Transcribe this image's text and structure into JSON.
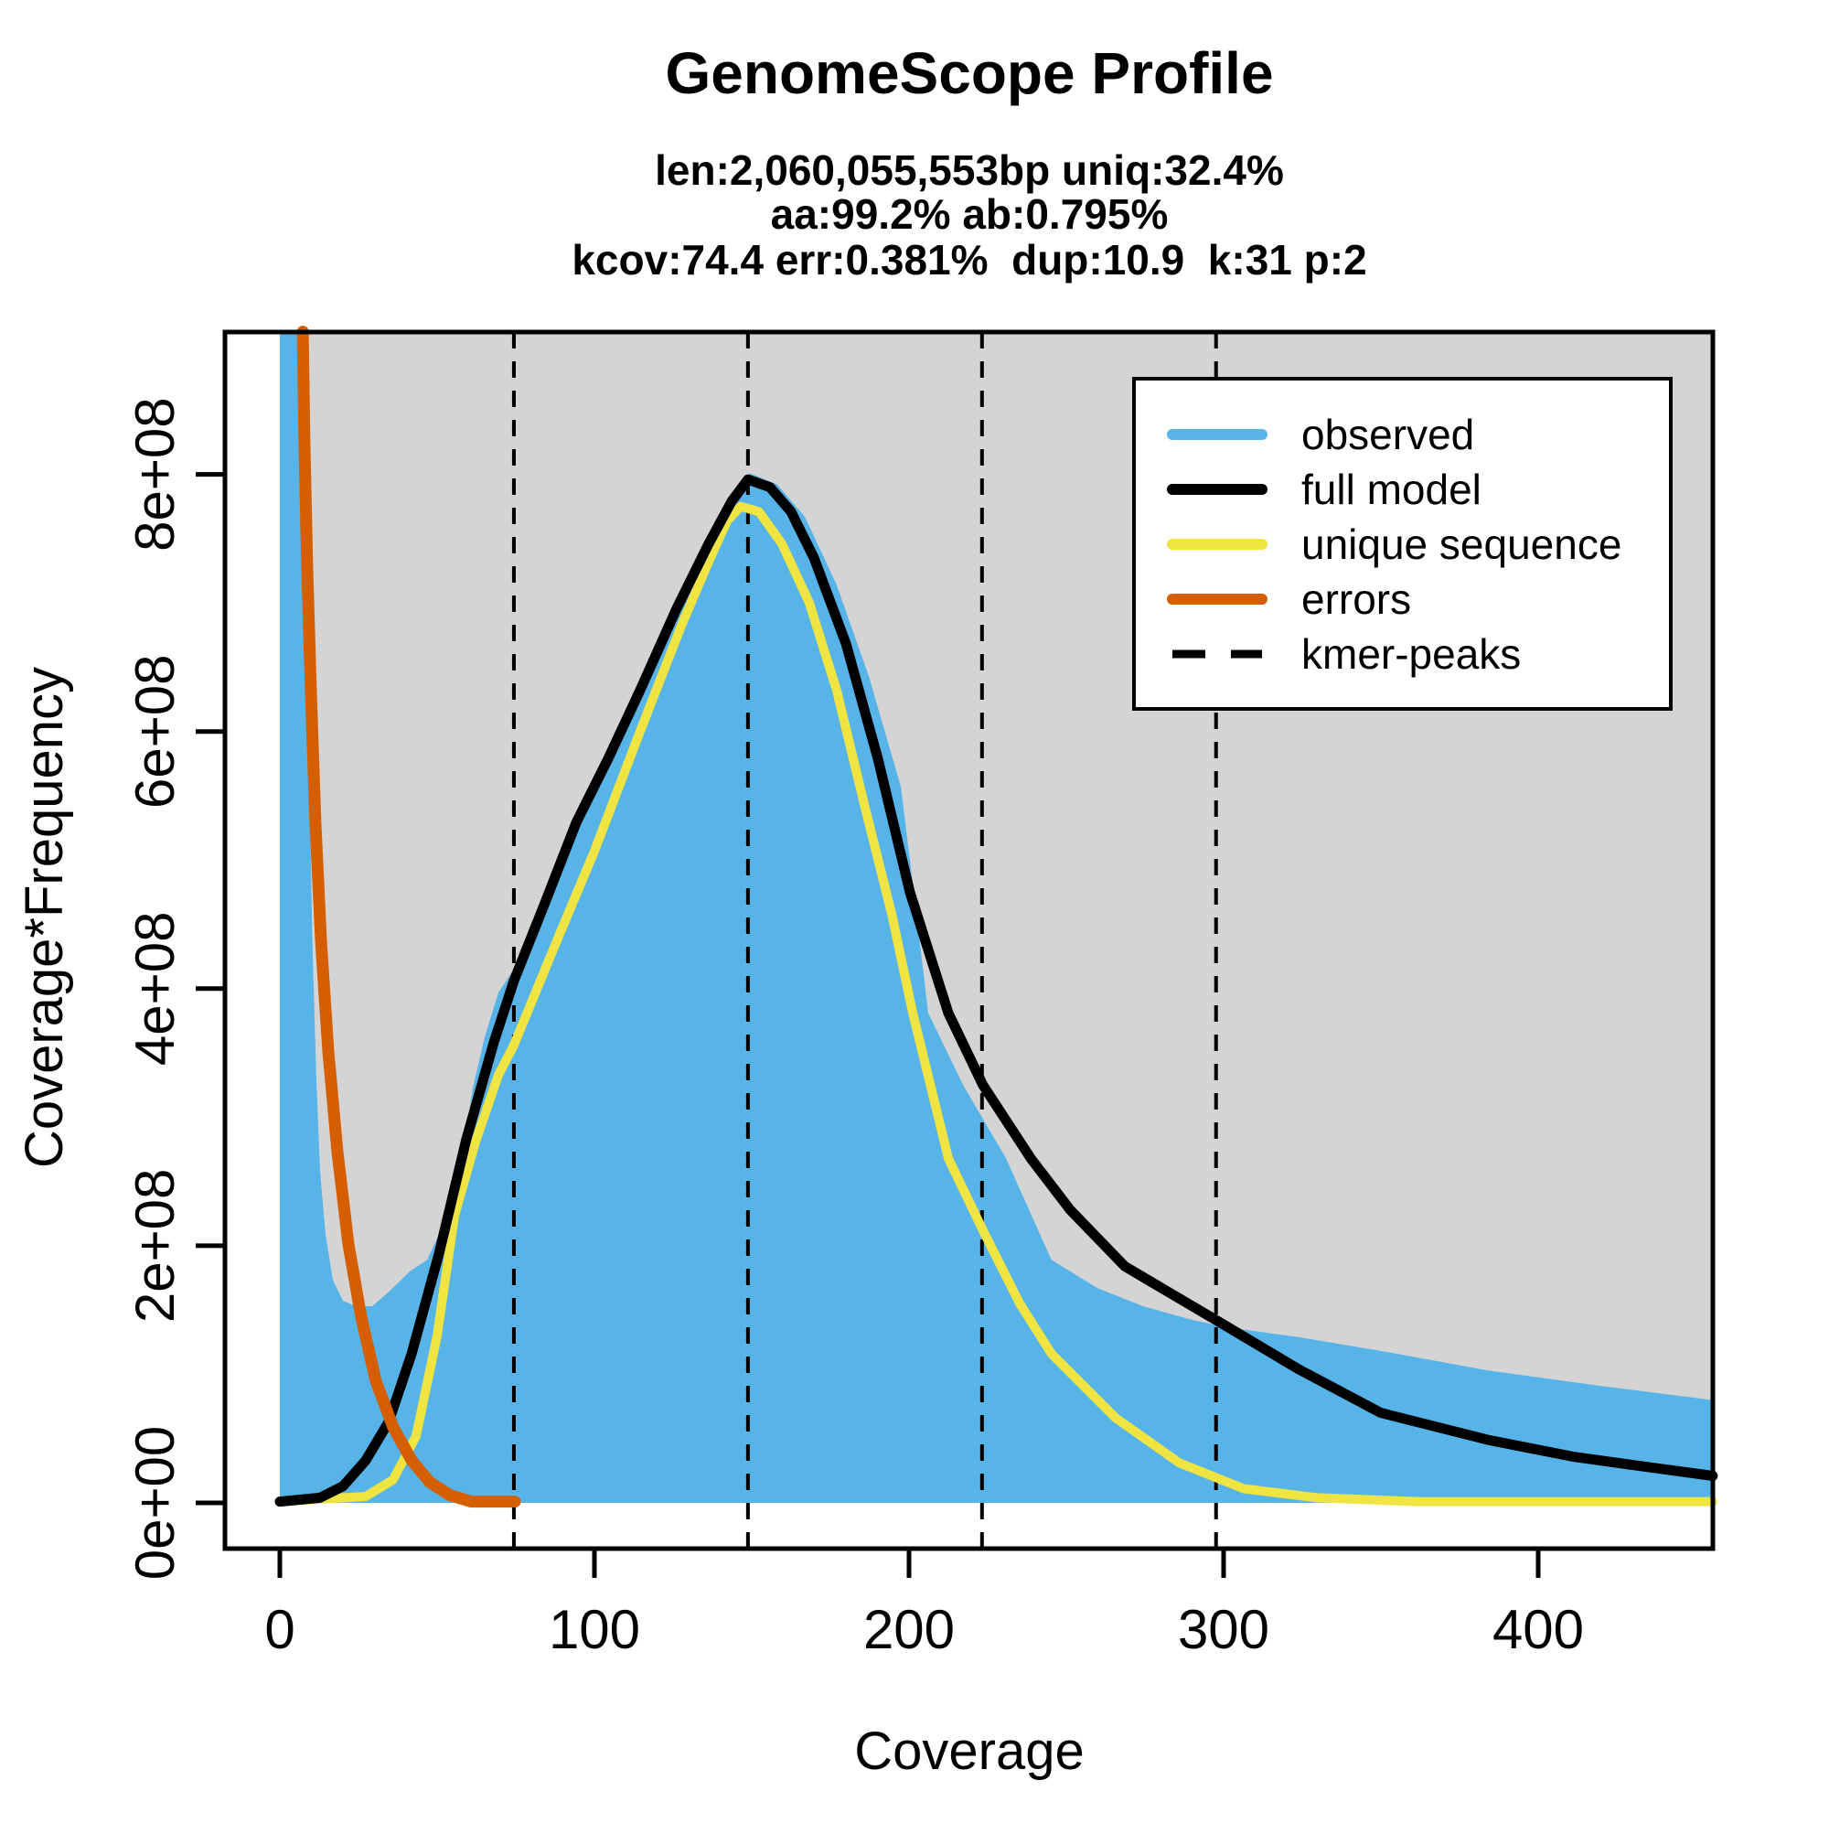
{
  "title": "GenomeScope Profile",
  "subtitle_lines": [
    "len:2,060,055,553bp uniq:32.4%",
    "aa:99.2% ab:0.795%",
    "kcov:74.4 err:0.381%  dup:10.9  k:31 p:2"
  ],
  "axes": {
    "x": {
      "label": "Coverage",
      "tick_values": [
        0,
        100,
        200,
        300,
        400
      ],
      "tick_labels": [
        "0",
        "100",
        "200",
        "300",
        "400"
      ],
      "range": [
        0,
        455.5
      ]
    },
    "y": {
      "label": "Coverage*Frequency",
      "tick_values": [
        0,
        2,
        4,
        6,
        8
      ],
      "tick_labels": [
        "0e+00",
        "2e+08",
        "4e+08",
        "6e+08",
        "8e+08"
      ],
      "range": [
        0,
        9.11
      ],
      "unit_multiplier": "1e+08"
    }
  },
  "legend": {
    "items": [
      {
        "label": "observed",
        "color": "#56B4E9",
        "style": "solid"
      },
      {
        "label": "full model",
        "color": "#000000",
        "style": "solid"
      },
      {
        "label": "unique sequence",
        "color": "#F0E442",
        "style": "solid"
      },
      {
        "label": "errors",
        "color": "#D55E00",
        "style": "solid"
      },
      {
        "label": "kmer-peaks",
        "color": "#000000",
        "style": "dashed"
      }
    ]
  },
  "colors": {
    "observed_fill": "#56B4E9",
    "full_model": "#000000",
    "unique_sequence": "#F0E442",
    "errors": "#D55E00",
    "clipped_region_gray": "#D4D4D4",
    "box_border": "#000000"
  },
  "chart_data": {
    "type": "area",
    "title": "GenomeScope Profile",
    "xlabel": "Coverage",
    "ylabel": "Coverage*Frequency",
    "xlim": [
      0,
      455.5
    ],
    "ylim_e8": [
      0,
      9.11
    ],
    "grid": false,
    "legend_position": "top-right",
    "kmer_peaks": [
      74.4,
      148.8,
      223.2,
      297.6
    ],
    "model_stats": {
      "len_bp": 2060055553,
      "uniq_pct": 32.4,
      "aa_pct": 99.2,
      "ab_pct": 0.795,
      "kcov": 74.4,
      "err_pct": 0.381,
      "dup": 10.9,
      "k": 31,
      "p": 2
    },
    "series": [
      {
        "name": "observed",
        "kind": "filled-area",
        "color": "#56B4E9",
        "points_x_y_e8": [
          [
            0,
            0
          ],
          [
            0,
            9.11
          ],
          [
            7.3,
            9.11
          ],
          [
            7.8,
            8.13
          ],
          [
            8.7,
            6.71
          ],
          [
            9.6,
            5.29
          ],
          [
            10.5,
            4.22
          ],
          [
            11.6,
            3.3
          ],
          [
            12.8,
            2.58
          ],
          [
            14.5,
            2.09
          ],
          [
            16.9,
            1.73
          ],
          [
            20.1,
            1.57
          ],
          [
            24.4,
            1.53
          ],
          [
            29.4,
            1.53
          ],
          [
            34.6,
            1.64
          ],
          [
            41.3,
            1.8
          ],
          [
            46.8,
            1.89
          ],
          [
            51.2,
            2.12
          ],
          [
            54.9,
            2.44
          ],
          [
            58.7,
            2.8
          ],
          [
            61.3,
            3.22
          ],
          [
            65.1,
            3.62
          ],
          [
            69.5,
            3.97
          ],
          [
            74.4,
            4.15
          ],
          [
            85.5,
            4.75
          ],
          [
            95.6,
            5.36
          ],
          [
            104.4,
            5.82
          ],
          [
            114.5,
            6.37
          ],
          [
            126.2,
            7.01
          ],
          [
            136.3,
            7.49
          ],
          [
            143.6,
            7.81
          ],
          [
            149.4,
            8.01
          ],
          [
            158.1,
            7.92
          ],
          [
            166.9,
            7.67
          ],
          [
            177.0,
            7.14
          ],
          [
            187.2,
            6.43
          ],
          [
            197.4,
            5.57
          ],
          [
            201.7,
            4.72
          ],
          [
            206.1,
            3.81
          ],
          [
            217.2,
            3.25
          ],
          [
            230.8,
            2.68
          ],
          [
            245.3,
            1.89
          ],
          [
            259.9,
            1.67
          ],
          [
            274.4,
            1.53
          ],
          [
            288.9,
            1.43
          ],
          [
            299.7,
            1.37
          ],
          [
            323.8,
            1.29
          ],
          [
            352.9,
            1.17
          ],
          [
            384.0,
            1.03
          ],
          [
            419.8,
            0.91
          ],
          [
            455.5,
            0.8
          ],
          [
            455.5,
            0
          ]
        ]
      },
      {
        "name": "full model",
        "kind": "line",
        "color": "#000000",
        "width": 11,
        "points_x_y_e8": [
          [
            0,
            0.01
          ],
          [
            12.8,
            0.04
          ],
          [
            20.1,
            0.13
          ],
          [
            27.3,
            0.33
          ],
          [
            34.6,
            0.63
          ],
          [
            41.9,
            1.16
          ],
          [
            50.6,
            1.94
          ],
          [
            59.3,
            2.83
          ],
          [
            68.0,
            3.58
          ],
          [
            74.4,
            4.06
          ],
          [
            84.0,
            4.65
          ],
          [
            94.2,
            5.29
          ],
          [
            104.4,
            5.79
          ],
          [
            114.5,
            6.32
          ],
          [
            126.2,
            6.96
          ],
          [
            136.3,
            7.46
          ],
          [
            143.6,
            7.79
          ],
          [
            148.8,
            7.96
          ],
          [
            155.8,
            7.9
          ],
          [
            162.5,
            7.71
          ],
          [
            169.8,
            7.35
          ],
          [
            180.0,
            6.68
          ],
          [
            190.1,
            5.79
          ],
          [
            200.3,
            4.75
          ],
          [
            212.5,
            3.81
          ],
          [
            223.5,
            3.25
          ],
          [
            238.7,
            2.68
          ],
          [
            251.2,
            2.28
          ],
          [
            268.6,
            1.84
          ],
          [
            297.7,
            1.42
          ],
          [
            323.8,
            1.04
          ],
          [
            350.0,
            0.7
          ],
          [
            384.0,
            0.49
          ],
          [
            411.0,
            0.36
          ],
          [
            434.3,
            0.28
          ],
          [
            455.5,
            0.21
          ]
        ]
      },
      {
        "name": "unique sequence",
        "kind": "line",
        "color": "#F0E442",
        "width": 10,
        "points_x_y_e8": [
          [
            0,
            0.01
          ],
          [
            27.3,
            0.05
          ],
          [
            36.0,
            0.18
          ],
          [
            43.3,
            0.52
          ],
          [
            50.0,
            1.3
          ],
          [
            55.5,
            2.23
          ],
          [
            62.2,
            2.81
          ],
          [
            69.5,
            3.33
          ],
          [
            74.4,
            3.56
          ],
          [
            87.5,
            4.34
          ],
          [
            100.0,
            5.07
          ],
          [
            114.5,
            6.0
          ],
          [
            127.6,
            6.82
          ],
          [
            136.3,
            7.32
          ],
          [
            142.2,
            7.64
          ],
          [
            146.5,
            7.75
          ],
          [
            152.3,
            7.71
          ],
          [
            159.6,
            7.46
          ],
          [
            168.3,
            7.0
          ],
          [
            177.0,
            6.32
          ],
          [
            185.8,
            5.43
          ],
          [
            194.5,
            4.58
          ],
          [
            201.2,
            3.81
          ],
          [
            212.5,
            2.68
          ],
          [
            223.5,
            2.12
          ],
          [
            235.2,
            1.55
          ],
          [
            245.3,
            1.16
          ],
          [
            265.7,
            0.66
          ],
          [
            286.0,
            0.31
          ],
          [
            306.4,
            0.11
          ],
          [
            329.7,
            0.04
          ],
          [
            361.6,
            0.01
          ],
          [
            455.5,
            0.01
          ]
        ]
      },
      {
        "name": "errors",
        "kind": "line",
        "color": "#D55E00",
        "width": 13,
        "points_x_y_e8": [
          [
            7.3,
            9.11
          ],
          [
            7.8,
            8.28
          ],
          [
            8.7,
            7.28
          ],
          [
            9.9,
            6.28
          ],
          [
            11.3,
            5.29
          ],
          [
            13.1,
            4.36
          ],
          [
            15.4,
            3.51
          ],
          [
            18.3,
            2.73
          ],
          [
            21.8,
            2.01
          ],
          [
            25.9,
            1.44
          ],
          [
            30.5,
            0.95
          ],
          [
            36.0,
            0.59
          ],
          [
            41.9,
            0.33
          ],
          [
            47.7,
            0.16
          ],
          [
            54.1,
            0.06
          ],
          [
            60.8,
            0.01
          ],
          [
            74.7,
            0.01
          ]
        ]
      }
    ]
  }
}
